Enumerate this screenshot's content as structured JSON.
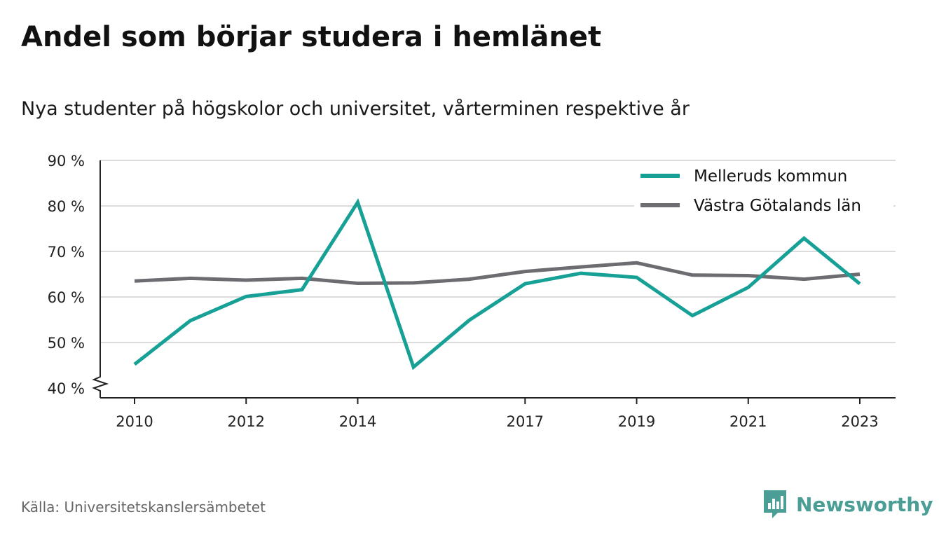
{
  "title": "Andel som börjar studera i hemlänet",
  "subtitle": "Nya studenter på högskolor och universitet, vårterminen respektive år",
  "source": "Källa: Universitetskanslersämbetet",
  "brand": "Newsworthy",
  "chart_data": {
    "type": "line",
    "x": [
      2010,
      2011,
      2012,
      2013,
      2014,
      2015,
      2016,
      2017,
      2018,
      2019,
      2020,
      2021,
      2022,
      2023
    ],
    "x_tick_labels": [
      "2010",
      "2012",
      "2014",
      "2017",
      "2019",
      "2021",
      "2023"
    ],
    "y_tick_labels": [
      "40 %",
      "50 %",
      "60 %",
      "70 %",
      "80 %",
      "90 %"
    ],
    "ylim": [
      40,
      90
    ],
    "grid": true,
    "legend_position": "top-right",
    "axis_break": true,
    "series": [
      {
        "name": "Melleruds kommun",
        "color": "#16a096",
        "values": [
          45.2,
          54.8,
          60.1,
          61.6,
          80.8,
          44.6,
          54.9,
          62.9,
          65.2,
          64.3,
          55.9,
          62.1,
          72.9,
          62.9
        ]
      },
      {
        "name": "Västra Götalands län",
        "color": "#6d6c71",
        "values": [
          63.5,
          64.1,
          63.7,
          64.1,
          63.0,
          63.1,
          63.9,
          65.6,
          66.6,
          67.5,
          64.8,
          64.7,
          63.9,
          65.0
        ]
      }
    ]
  }
}
